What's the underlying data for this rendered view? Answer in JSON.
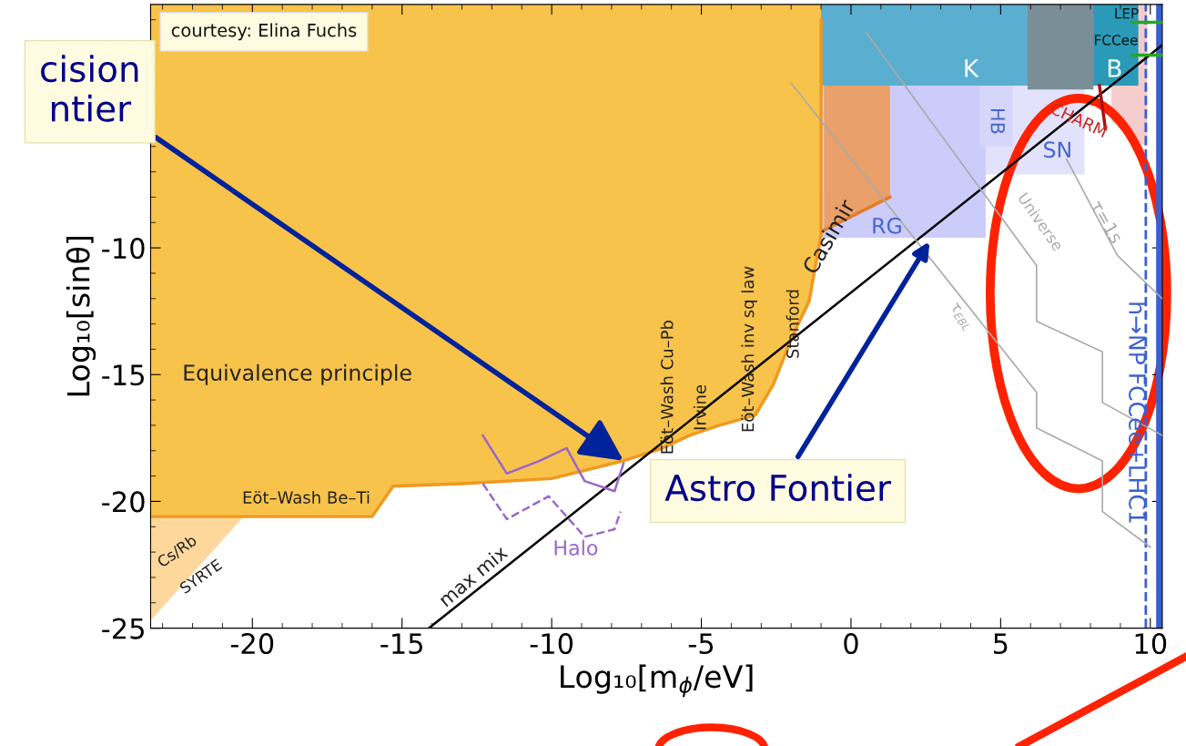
{
  "chart_data": {
    "type": "area",
    "xlabel": "Log₁₀[m$_{ϕ}$/eV]",
    "ylabel": "Log₁₀[sinθ]",
    "xlim": [
      -23.4,
      10.4
    ],
    "ylim": [
      -25,
      -0.4
    ],
    "xticks": [
      -20,
      -15,
      -10,
      -5,
      0,
      5,
      10
    ],
    "yticks": [
      -25,
      -20,
      -15,
      -10
    ],
    "legend": false,
    "grid": false,
    "series": [
      {
        "color": "#fdd79c",
        "x": [
          -23.4,
          -20.3
        ],
        "values": [
          -24.7,
          -20.6
        ]
      },
      {
        "color": "#f8c34a",
        "x": [
          -23.4,
          -16,
          -15.3,
          -13,
          -10,
          -7.6,
          -6.3,
          -5.4,
          -4.4,
          -3.2,
          -2.6,
          -2,
          -1.4,
          -1.0,
          -1.0
        ],
        "values": [
          -20.6,
          -20.6,
          -19.4,
          -19.3,
          -19.1,
          -18.4,
          -17.9,
          -17.4,
          -17,
          -16.6,
          -15.4,
          -13.6,
          -12.1,
          -9.5,
          -1.0
        ]
      },
      {
        "color": "#ccccfa",
        "x": [
          -1.0,
          4.5
        ],
        "values": [
          -9.6,
          -9.6
        ]
      },
      {
        "color": "#e2e2fc",
        "x": [
          4.5,
          7.8
        ],
        "values": [
          -7.1,
          -7.1
        ]
      },
      {
        "color": "#d6d6fa",
        "x": [
          4.3,
          5.4
        ],
        "values": [
          -6.0,
          -6.0
        ]
      },
      {
        "color": "#e9a06a",
        "x": [
          -0.9,
          1.3
        ],
        "values": [
          -9.3,
          -8.0
        ]
      },
      {
        "color": "#f4cccc",
        "x": [
          8.7,
          9.5,
          9.9
        ],
        "values": [
          -5.0,
          -5.8,
          -6.0
        ]
      },
      {
        "color": "#5aaed0",
        "x": [
          -1.0,
          8.2
        ],
        "values": [
          -3.6,
          -3.6
        ]
      },
      {
        "color": "#7a8e98",
        "x": [
          5.9,
          8.1
        ],
        "values": [
          -3.75,
          -3.75
        ]
      },
      {
        "color": "#2a9ab8",
        "x": [
          8.1,
          9.6
        ],
        "values": [
          -3.6,
          -3.6
        ]
      },
      {
        "type": "line",
        "color": "#000000",
        "x": [
          -14.1,
          10.4
        ],
        "values": [
          -25,
          -2.0
        ]
      },
      {
        "type": "line",
        "color": "#9966cc",
        "x": [
          -12.3,
          -11.5,
          -10.4,
          -9.5,
          -8.9,
          -7.9,
          -7.6
        ],
        "values": [
          -17.4,
          -18.9,
          -18.4,
          -17.9,
          -19.2,
          -19.6,
          -18.5
        ]
      },
      {
        "type": "line",
        "color": "#9966cc",
        "line_style": "dashed",
        "x": [
          -12.3,
          -11.5,
          -10.1,
          -8.9,
          -7.9,
          -7.7
        ],
        "values": [
          -19.3,
          -20.7,
          -19.8,
          -21.4,
          -21.1,
          -20.4
        ]
      },
      {
        "type": "line",
        "color": "#aaaaaa",
        "x": [
          0.5,
          6.2,
          6.2,
          8.4,
          8.4,
          10.4
        ],
        "values": [
          -1.5,
          -10.7,
          -12.9,
          -14.1,
          -16.1,
          -17.4
        ]
      },
      {
        "type": "line",
        "color": "#aaaaaa",
        "x": [
          -2.0,
          6.2,
          6.2,
          8.4,
          8.4,
          10.0
        ],
        "values": [
          -3.5,
          -15.7,
          -17.1,
          -18.4,
          -20.4,
          -21.8
        ]
      },
      {
        "type": "line",
        "color": "#aaaaaa",
        "x": [
          7.2,
          8.9,
          10.4
        ],
        "values": [
          -6.5,
          -10.3,
          -12.0
        ]
      },
      {
        "type": "line",
        "color": "#aa1111",
        "x": [
          8.3,
          8.5
        ],
        "values": [
          -3.6,
          -5.3
        ]
      },
      {
        "type": "line",
        "color": "#22aa22",
        "x": [
          9.4,
          10.4
        ],
        "values": [
          -1.1,
          -1.1
        ]
      },
      {
        "type": "line",
        "color": "#22aa22",
        "x": [
          9.4,
          10.4
        ],
        "values": [
          -2.4,
          -2.4
        ]
      }
    ],
    "ref_lines": [
      {
        "axis": "x",
        "value": 9.85,
        "color": "#3a5fd0",
        "line_style": "dashed",
        "label": "h→NP FCCee+LHC1"
      },
      {
        "axis": "x",
        "value": 10.3,
        "color": "#3a5fd0"
      }
    ],
    "annotations": [
      "Equivalence principle",
      "Eöt–Wash Be–Ti",
      "Cs/Rb",
      "SYRTE",
      "Eöt–Wash Cu–Pb",
      "Irvine",
      "Eöt–Wash inv sq law",
      "Stanford",
      "Casimir",
      "Halo",
      "max mix",
      "RG",
      "HB",
      "SN",
      "K",
      "B",
      "CHARM",
      "LEP",
      "FCCee",
      "τ=1s",
      "Universe",
      "τ$_{EBL}$",
      "courtesy: Elina Fuchs",
      "Astro Fontier",
      {
        "text": "cision\nntier",
        "x": -7.6,
        "y": -18.4
      }
    ]
  }
}
